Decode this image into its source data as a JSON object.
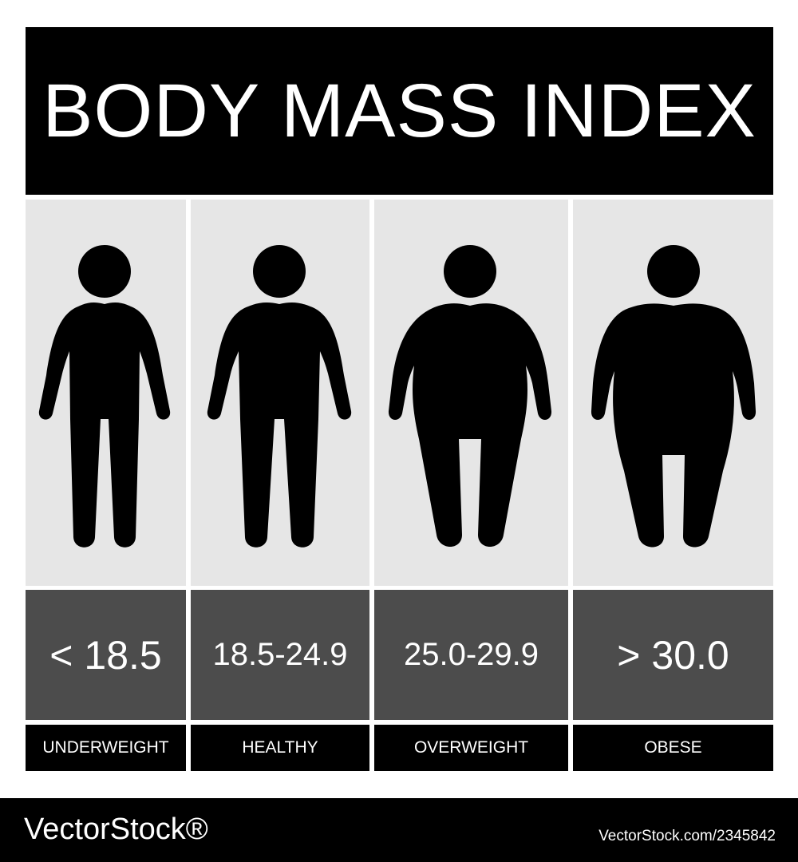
{
  "title": "BODY MASS INDEX",
  "categories": [
    {
      "range": "< 18.5",
      "label": "UNDERWEIGHT",
      "figure_icon": "thin-person-icon"
    },
    {
      "range": "18.5-24.9",
      "label": "HEALTHY",
      "figure_icon": "normal-person-icon"
    },
    {
      "range": "25.0-29.9",
      "label": "OVERWEIGHT",
      "figure_icon": "overweight-person-icon"
    },
    {
      "range": "> 30.0",
      "label": "OBESE",
      "figure_icon": "obese-person-icon"
    }
  ],
  "footer": {
    "logo": "VectorStock®",
    "image_id": "VectorStock.com/2345842"
  },
  "colors": {
    "title_bg": "#000000",
    "figure_bg": "#e6e6e6",
    "range_bg": "#4c4c4c",
    "label_bg": "#000000",
    "text": "#ffffff"
  }
}
